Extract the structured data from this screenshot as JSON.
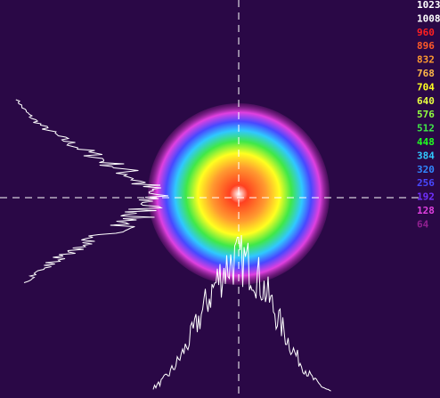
{
  "color_scale": [
    {
      "value": 1023,
      "color": "#ffffff"
    },
    {
      "value": 1008,
      "color": "#ffffff"
    },
    {
      "value": 960,
      "color": "#ff2020"
    },
    {
      "value": 896,
      "color": "#ff5a28"
    },
    {
      "value": 832,
      "color": "#ff9a30"
    },
    {
      "value": 768,
      "color": "#ffb848"
    },
    {
      "value": 704,
      "color": "#ffff20"
    },
    {
      "value": 640,
      "color": "#e8ff40"
    },
    {
      "value": 576,
      "color": "#90ff40"
    },
    {
      "value": 512,
      "color": "#40e848"
    },
    {
      "value": 448,
      "color": "#20ff20"
    },
    {
      "value": 384,
      "color": "#30c8ff"
    },
    {
      "value": 320,
      "color": "#3088ff"
    },
    {
      "value": 256,
      "color": "#4848ff"
    },
    {
      "value": 192,
      "color": "#7030ff"
    },
    {
      "value": 128,
      "color": "#e040e0"
    },
    {
      "value": 64,
      "color": "#902090"
    }
  ]
}
